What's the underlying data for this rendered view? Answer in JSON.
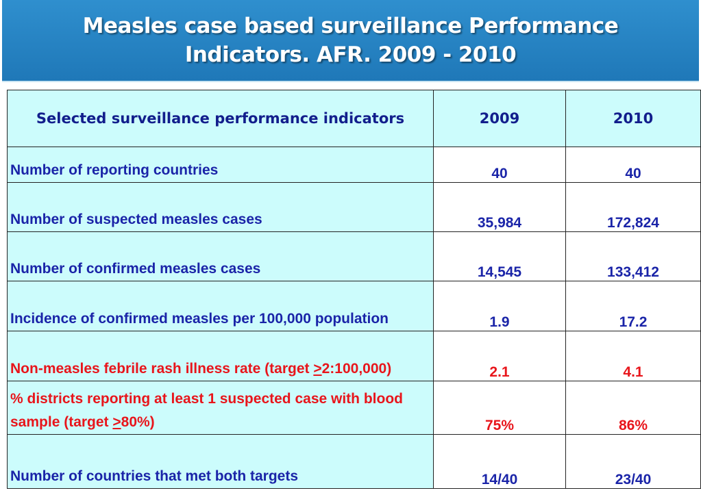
{
  "title": "Measles case based surveillance Performance\nIndicators. AFR. 2009 - 2010",
  "table": {
    "headers": [
      "Selected surveillance performance indicators",
      "2009",
      "2010"
    ],
    "rows": [
      {
        "label": " Number of reporting countries",
        "v2009": "40",
        "v2010": "40"
      },
      {
        "label": " Number of suspected measles cases",
        "v2009": "35,984",
        "v2010": "172,824"
      },
      {
        "label": " Number of confirmed measles cases",
        "v2009": "14,545",
        "v2010": "133,412"
      },
      {
        "label": " Incidence of confirmed measles per 100,000 population",
        "v2009": "1.9",
        "v2010": "17.2"
      },
      {
        "label_pre": " Non-measles febrile rash illness rate (target ",
        "label_sym": ">",
        "label_post": "2:100,000)",
        "v2009": "2.1",
        "v2010": "4.1"
      },
      {
        "label_pre": " % districts reporting at least 1 suspected case with blood sample (target ",
        "label_sym": ">",
        "label_post": "80%)",
        "v2009": "75%",
        "v2010": "86%"
      },
      {
        "label": "Number of countries that met both targets",
        "v2009": "14/40",
        "v2010": "23/40"
      }
    ]
  },
  "colors": {
    "title_bg": "#2080c0",
    "table_bg": "#ccfcfc",
    "blue_text": "#1a24a8",
    "red_text": "#e8151b"
  }
}
